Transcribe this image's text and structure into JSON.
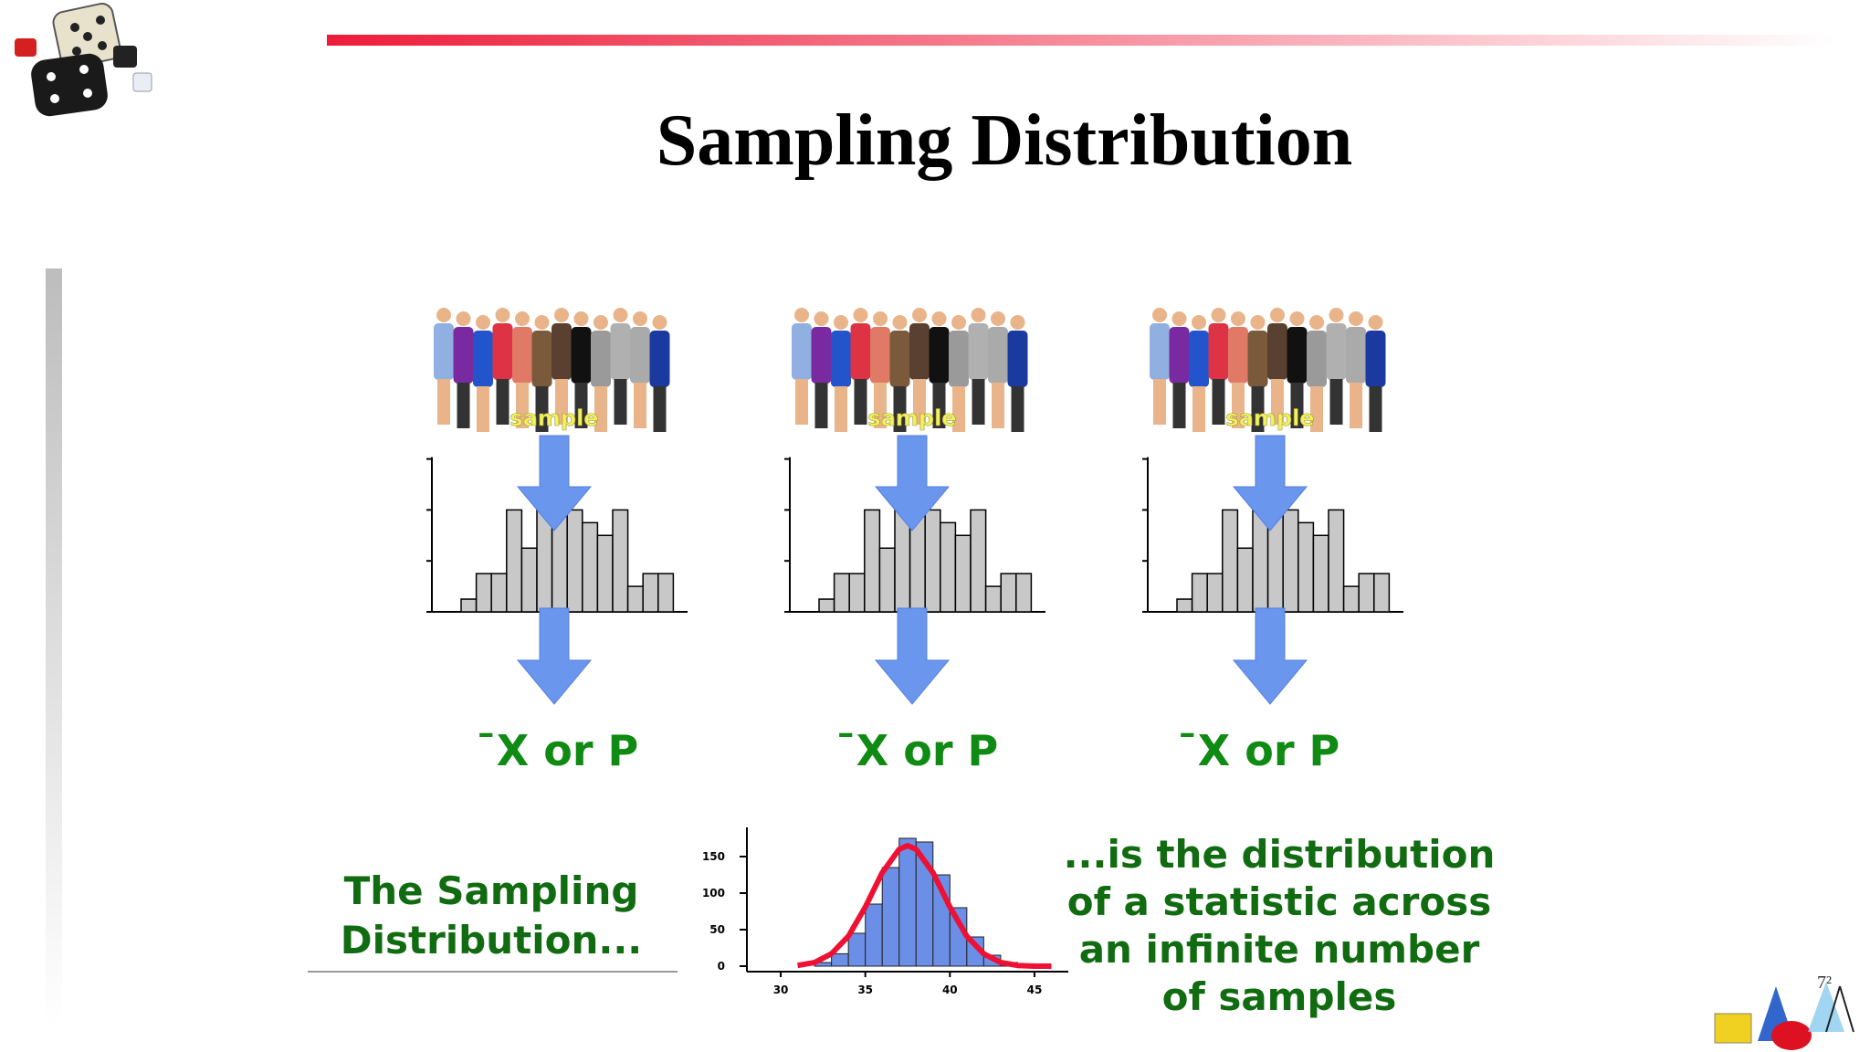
{
  "title": "Sampling Distribution",
  "samples": [
    {
      "label": "sample",
      "statistic": "¯X or P"
    },
    {
      "label": "sample",
      "statistic": "¯X or P"
    },
    {
      "label": "sample",
      "statistic": "¯X or P"
    }
  ],
  "sample_histogram": {
    "values": [
      0.5,
      1.5,
      1.5,
      4,
      2.5,
      4,
      4,
      4,
      3.5,
      3,
      4,
      1,
      1.5,
      1.5
    ],
    "ylim": [
      0,
      6
    ],
    "yticks": [
      0,
      2,
      4,
      6
    ],
    "color": "#c8c8c8"
  },
  "caption_left": [
    "The Sampling",
    "Distribution..."
  ],
  "caption_right": [
    "...is the distribution",
    "of a statistic across",
    "an infinite number",
    "of samples"
  ],
  "chart_data": {
    "type": "histogram",
    "bins": [
      32,
      33,
      34,
      35,
      36,
      37,
      38,
      39,
      40,
      41,
      42,
      43,
      44
    ],
    "values": [
      5,
      17,
      45,
      85,
      135,
      175,
      170,
      125,
      80,
      40,
      15,
      5
    ],
    "color": "#6b8fe6",
    "curve": {
      "x": [
        31,
        32,
        33,
        34,
        35,
        36,
        37,
        37.5,
        38,
        39,
        40,
        41,
        42,
        43,
        44,
        45,
        46
      ],
      "y": [
        1,
        5,
        17,
        41,
        81,
        128,
        160,
        165,
        160,
        128,
        81,
        41,
        17,
        5,
        1,
        0,
        0
      ],
      "color": "#ee1133"
    },
    "xlim": [
      28,
      47
    ],
    "ylim": [
      0,
      190
    ],
    "xticks": [
      30,
      35,
      40,
      45
    ],
    "yticks": [
      0,
      50,
      100,
      150
    ]
  }
}
